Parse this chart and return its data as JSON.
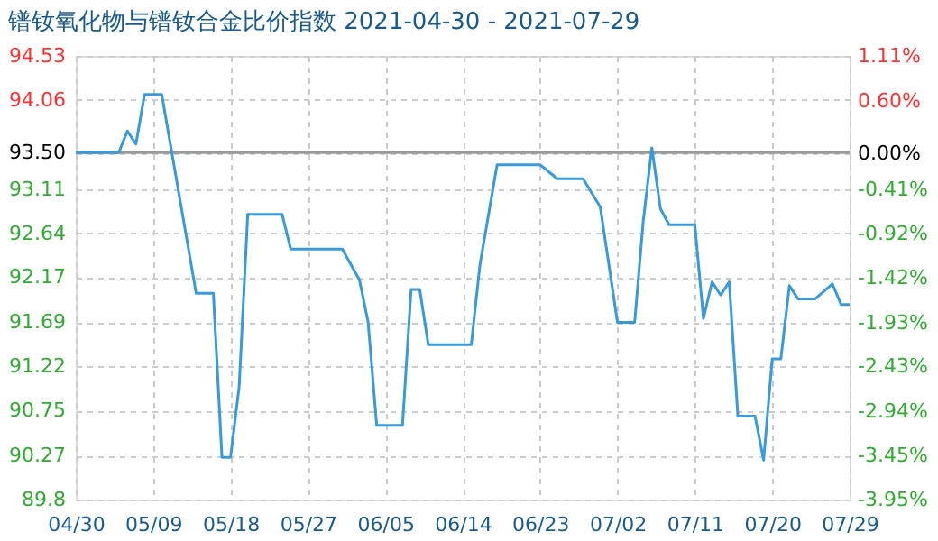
{
  "chart_data": {
    "type": "line",
    "title": "镨钕氧化物与镨钕合金比价指数 2021-04-30 - 2021-07-29",
    "x": [
      "2021-04-30",
      "2021-05-05",
      "2021-05-06",
      "2021-05-07",
      "2021-05-08",
      "2021-05-10",
      "2021-05-14",
      "2021-05-16",
      "2021-05-17",
      "2021-05-18",
      "2021-05-19",
      "2021-05-20",
      "2021-05-24",
      "2021-05-25",
      "2021-05-31",
      "2021-06-02",
      "2021-06-03",
      "2021-06-04",
      "2021-06-07",
      "2021-06-08",
      "2021-06-09",
      "2021-06-10",
      "2021-06-15",
      "2021-06-16",
      "2021-06-18",
      "2021-06-23",
      "2021-06-25",
      "2021-06-28",
      "2021-06-30",
      "2021-07-02",
      "2021-07-04",
      "2021-07-05",
      "2021-07-06",
      "2021-07-07",
      "2021-07-08",
      "2021-07-11",
      "2021-07-12",
      "2021-07-13",
      "2021-07-14",
      "2021-07-15",
      "2021-07-16",
      "2021-07-18",
      "2021-07-19",
      "2021-07-20",
      "2021-07-21",
      "2021-07-22",
      "2021-07-23",
      "2021-07-25",
      "2021-07-27",
      "2021-07-28",
      "2021-07-29"
    ],
    "series": [
      {
        "color": "#3a9ad9",
        "values": [
          93.5,
          93.5,
          93.73,
          93.59,
          94.12,
          94.12,
          92.0,
          92.0,
          90.25,
          90.25,
          91.0,
          92.84,
          92.84,
          92.47,
          92.47,
          92.14,
          91.69,
          90.59,
          90.59,
          92.04,
          92.04,
          91.45,
          91.45,
          92.3,
          93.37,
          93.37,
          93.22,
          93.22,
          92.92,
          91.69,
          91.69,
          92.77,
          93.55,
          92.9,
          92.73,
          92.73,
          91.73,
          92.12,
          91.98,
          92.12,
          90.69,
          90.69,
          90.22,
          91.3,
          91.3,
          92.08,
          91.94,
          91.94,
          92.1,
          91.88,
          91.88
        ]
      }
    ],
    "xlim": [
      "2021-04-30",
      "2021-07-29"
    ],
    "xticks": [
      {
        "value": "2021-04-30",
        "label": "04/30"
      },
      {
        "value": "2021-05-09",
        "label": "05/09"
      },
      {
        "value": "2021-05-18",
        "label": "05/18"
      },
      {
        "value": "2021-05-27",
        "label": "05/27"
      },
      {
        "value": "2021-06-05",
        "label": "06/05"
      },
      {
        "value": "2021-06-14",
        "label": "06/14"
      },
      {
        "value": "2021-06-23",
        "label": "06/23"
      },
      {
        "value": "2021-07-02",
        "label": "07/02"
      },
      {
        "value": "2021-07-11",
        "label": "07/11"
      },
      {
        "value": "2021-07-20",
        "label": "07/20"
      },
      {
        "value": "2021-07-29",
        "label": "07/29"
      }
    ],
    "ylim": [
      89.8,
      94.53
    ],
    "yticks": [
      {
        "value": 89.8,
        "label": "89.8"
      },
      90.27,
      90.75,
      91.22,
      91.69,
      92.17,
      92.64,
      93.11,
      {
        "value": 93.5,
        "label": "93.50"
      },
      94.06,
      94.53
    ],
    "y2lim": [
      -3.95,
      1.11
    ],
    "y2ticks": [
      {
        "value": -3.95,
        "label": "-3.95%"
      },
      {
        "value": -3.45,
        "label": "-3.45%"
      },
      {
        "value": -2.94,
        "label": "-2.94%"
      },
      {
        "value": -2.43,
        "label": "-2.43%"
      },
      {
        "value": -1.93,
        "label": "-1.93%"
      },
      {
        "value": -1.42,
        "label": "-1.42%"
      },
      {
        "value": -0.92,
        "label": "-0.92%"
      },
      {
        "value": -0.41,
        "label": "-0.41%"
      },
      {
        "value": 0,
        "label": "0.00%"
      },
      {
        "value": 0.6,
        "label": "0.60%"
      },
      {
        "value": 1.11,
        "label": "1.11%"
      }
    ],
    "ref_lines": [
      {
        "axis": "y",
        "value": 93.5,
        "color": "#999999"
      }
    ],
    "grid": true,
    "marker": "none",
    "line_style": "solid"
  }
}
